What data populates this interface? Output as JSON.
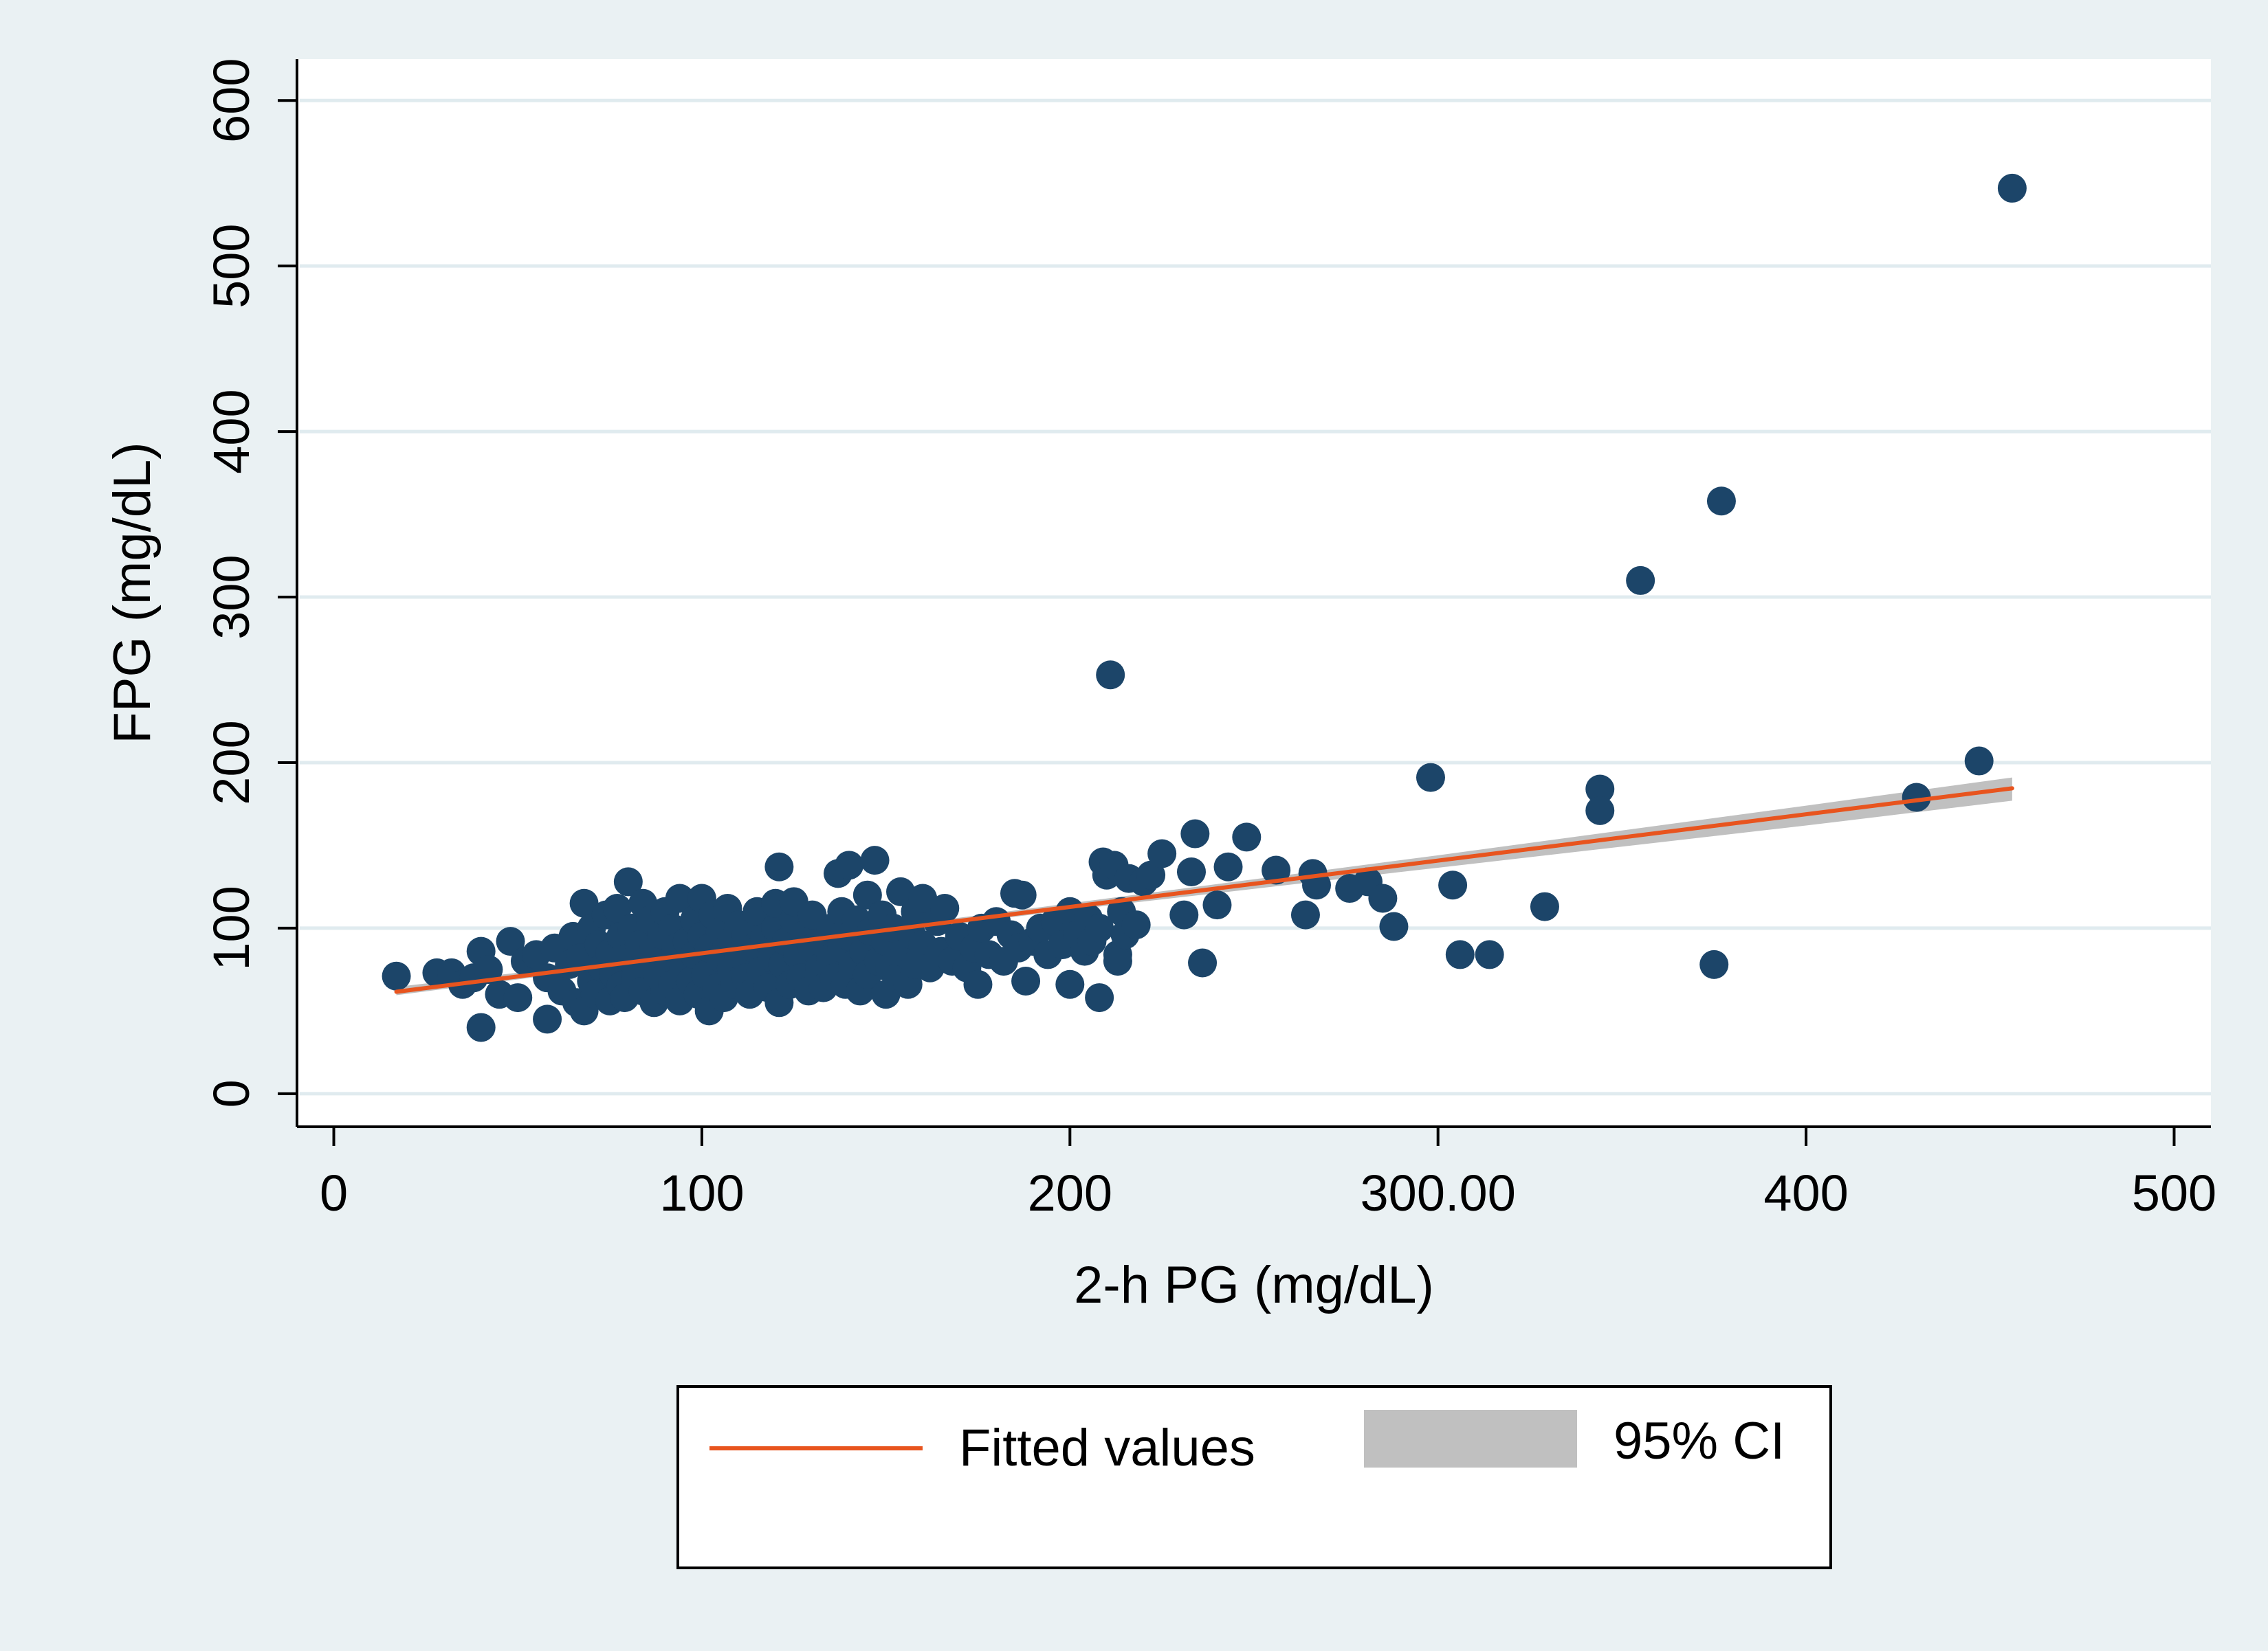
{
  "chart_data": {
    "type": "scatter",
    "xlabel": "2-h PG (mg/dL)",
    "ylabel": "FPG (mg/dL)",
    "xlim": [
      -10,
      510
    ],
    "ylim": [
      -20,
      625
    ],
    "x_ticks": [
      {
        "value": 0,
        "label": "0"
      },
      {
        "value": 100,
        "label": "100"
      },
      {
        "value": 200,
        "label": "200"
      },
      {
        "value": 300,
        "label": "300.00"
      },
      {
        "value": 400,
        "label": "400"
      },
      {
        "value": 500,
        "label": "500"
      }
    ],
    "y_ticks": [
      {
        "value": 0,
        "label": "0"
      },
      {
        "value": 100,
        "label": "100"
      },
      {
        "value": 200,
        "label": "200"
      },
      {
        "value": 300,
        "label": "300"
      },
      {
        "value": 400,
        "label": "400"
      },
      {
        "value": 500,
        "label": "500"
      },
      {
        "value": 600,
        "label": "600"
      }
    ],
    "grid": "horizontal",
    "legend": {
      "position": "bottom",
      "items": [
        {
          "label": "Fitted values",
          "type": "line",
          "color": "#e8541e"
        },
        {
          "label": "95% CI",
          "type": "band",
          "color": "#c0c0c0"
        }
      ]
    },
    "colors": {
      "points": "#1c4569",
      "fit_line": "#e8541e",
      "ci_band": "#c0c0c0",
      "grid": "#e0ebef",
      "plot_bg": "#ffffff",
      "page_bg": "#eaf1f3"
    },
    "fit": {
      "x_start": 17,
      "x_end": 456,
      "intercept": 56.8,
      "slope": 0.28
    },
    "ci": [
      {
        "x": 17,
        "lower": 59.5,
        "upper": 64.5
      },
      {
        "x": 100,
        "lower": 83.5,
        "upper": 86
      },
      {
        "x": 200,
        "lower": 111,
        "upper": 115
      },
      {
        "x": 300,
        "lower": 136.5,
        "upper": 144
      },
      {
        "x": 400,
        "lower": 162,
        "upper": 174
      },
      {
        "x": 456,
        "lower": 177,
        "upper": 191
      }
    ],
    "points": [
      [
        17,
        71
      ],
      [
        28,
        73
      ],
      [
        32,
        73
      ],
      [
        35,
        66
      ],
      [
        38,
        70
      ],
      [
        40,
        40
      ],
      [
        40,
        86
      ],
      [
        42,
        75
      ],
      [
        45,
        60
      ],
      [
        48,
        92
      ],
      [
        50,
        58
      ],
      [
        52,
        80
      ],
      [
        55,
        84
      ],
      [
        58,
        45
      ],
      [
        58,
        70
      ],
      [
        60,
        88
      ],
      [
        62,
        62
      ],
      [
        64,
        78
      ],
      [
        65,
        95
      ],
      [
        66,
        55
      ],
      [
        67,
        82
      ],
      [
        68,
        50
      ],
      [
        68,
        115
      ],
      [
        70,
        68
      ],
      [
        70,
        100
      ],
      [
        71,
        60
      ],
      [
        72,
        90
      ],
      [
        73,
        76
      ],
      [
        74,
        108
      ],
      [
        75,
        56
      ],
      [
        75,
        85
      ],
      [
        76,
        72
      ],
      [
        77,
        112
      ],
      [
        78,
        65
      ],
      [
        78,
        95
      ],
      [
        79,
        58
      ],
      [
        80,
        82
      ],
      [
        80,
        128
      ],
      [
        81,
        100
      ],
      [
        82,
        70
      ],
      [
        83,
        90
      ],
      [
        84,
        62
      ],
      [
        84,
        115
      ],
      [
        85,
        78
      ],
      [
        86,
        105
      ],
      [
        87,
        55
      ],
      [
        87,
        88
      ],
      [
        88,
        72
      ],
      [
        89,
        96
      ],
      [
        90,
        62
      ],
      [
        90,
        110
      ],
      [
        91,
        80
      ],
      [
        92,
        66
      ],
      [
        92,
        100
      ],
      [
        93,
        88
      ],
      [
        94,
        56
      ],
      [
        94,
        118
      ],
      [
        95,
        75
      ],
      [
        96,
        92
      ],
      [
        97,
        68
      ],
      [
        98,
        105
      ],
      [
        98,
        84
      ],
      [
        99,
        60
      ],
      [
        100,
        95
      ],
      [
        100,
        118
      ],
      [
        101,
        72
      ],
      [
        102,
        50
      ],
      [
        102,
        88
      ],
      [
        103,
        108
      ],
      [
        104,
        64
      ],
      [
        105,
        82
      ],
      [
        105,
        98
      ],
      [
        106,
        58
      ],
      [
        107,
        112
      ],
      [
        108,
        76
      ],
      [
        108,
        92
      ],
      [
        109,
        66
      ],
      [
        110,
        102
      ],
      [
        110,
        84
      ],
      [
        112,
        70
      ],
      [
        112,
        96
      ],
      [
        113,
        60
      ],
      [
        114,
        88
      ],
      [
        115,
        110
      ],
      [
        116,
        74
      ],
      [
        117,
        94
      ],
      [
        118,
        64
      ],
      [
        119,
        82
      ],
      [
        120,
        100
      ],
      [
        120,
        115
      ],
      [
        121,
        55
      ],
      [
        121,
        137
      ],
      [
        122,
        78
      ],
      [
        123,
        92
      ],
      [
        124,
        66
      ],
      [
        125,
        105
      ],
      [
        125,
        116
      ],
      [
        126,
        84
      ],
      [
        127,
        70
      ],
      [
        128,
        96
      ],
      [
        129,
        62
      ],
      [
        130,
        88
      ],
      [
        130,
        108
      ],
      [
        132,
        76
      ],
      [
        133,
        64
      ],
      [
        134,
        92
      ],
      [
        135,
        82
      ],
      [
        135,
        100
      ],
      [
        136,
        70
      ],
      [
        137,
        133
      ],
      [
        138,
        88
      ],
      [
        138,
        110
      ],
      [
        139,
        66
      ],
      [
        140,
        95
      ],
      [
        140,
        138
      ],
      [
        141,
        78
      ],
      [
        142,
        105
      ],
      [
        143,
        62
      ],
      [
        144,
        86
      ],
      [
        145,
        120
      ],
      [
        145,
        72
      ],
      [
        146,
        98
      ],
      [
        147,
        141
      ],
      [
        148,
        80
      ],
      [
        149,
        108
      ],
      [
        150,
        60
      ],
      [
        150,
        92
      ],
      [
        151,
        76
      ],
      [
        152,
        100
      ],
      [
        153,
        70
      ],
      [
        154,
        122
      ],
      [
        155,
        85
      ],
      [
        156,
        66
      ],
      [
        157,
        96
      ],
      [
        158,
        110
      ],
      [
        158,
        78
      ],
      [
        160,
        118
      ],
      [
        160,
        90
      ],
      [
        162,
        76
      ],
      [
        164,
        104
      ],
      [
        165,
        86
      ],
      [
        166,
        112
      ],
      [
        168,
        80
      ],
      [
        170,
        95
      ],
      [
        172,
        76
      ],
      [
        174,
        88
      ],
      [
        175,
        66
      ],
      [
        176,
        100
      ],
      [
        178,
        84
      ],
      [
        180,
        104
      ],
      [
        182,
        80
      ],
      [
        184,
        96
      ],
      [
        185,
        121
      ],
      [
        186,
        88
      ],
      [
        187,
        120
      ],
      [
        188,
        68
      ],
      [
        190,
        92
      ],
      [
        192,
        100
      ],
      [
        194,
        84
      ],
      [
        196,
        104
      ],
      [
        198,
        90
      ],
      [
        200,
        66
      ],
      [
        200,
        110
      ],
      [
        202,
        96
      ],
      [
        204,
        86
      ],
      [
        205,
        106
      ],
      [
        206,
        92
      ],
      [
        208,
        58
      ],
      [
        208,
        100
      ],
      [
        209,
        140
      ],
      [
        210,
        132
      ],
      [
        211,
        253
      ],
      [
        212,
        138
      ],
      [
        213,
        84
      ],
      [
        213,
        80
      ],
      [
        214,
        110
      ],
      [
        215,
        96
      ],
      [
        216,
        130
      ],
      [
        218,
        102
      ],
      [
        220,
        128
      ],
      [
        222,
        132
      ],
      [
        225,
        145
      ],
      [
        231,
        108
      ],
      [
        233,
        134
      ],
      [
        234,
        157
      ],
      [
        236,
        79
      ],
      [
        240,
        114
      ],
      [
        243,
        137
      ],
      [
        248,
        155
      ],
      [
        256,
        135
      ],
      [
        264,
        108
      ],
      [
        266,
        133
      ],
      [
        267,
        126
      ],
      [
        276,
        124
      ],
      [
        281,
        128
      ],
      [
        285,
        118
      ],
      [
        288,
        101
      ],
      [
        298,
        191
      ],
      [
        304,
        126
      ],
      [
        306,
        84
      ],
      [
        314,
        84
      ],
      [
        329,
        113
      ],
      [
        344,
        184
      ],
      [
        344,
        171
      ],
      [
        355,
        310
      ],
      [
        375,
        78
      ],
      [
        377,
        358
      ],
      [
        430,
        179
      ],
      [
        447,
        201
      ],
      [
        456,
        547
      ]
    ]
  }
}
